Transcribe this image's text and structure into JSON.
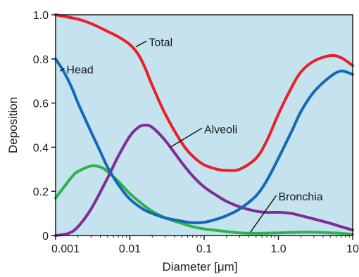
{
  "chart_data": {
    "type": "line",
    "xlabel": "Diameter [μm]",
    "ylabel": "Deposition",
    "xscale": "log",
    "xlim": [
      0.001,
      10
    ],
    "ylim": [
      0,
      1
    ],
    "xticks": [
      {
        "value": 0.001,
        "label": "0.001"
      },
      {
        "value": 0.01,
        "label": "0.01"
      },
      {
        "value": 0.1,
        "label": "0.1"
      },
      {
        "value": 1,
        "label": "1.0"
      },
      {
        "value": 10,
        "label": "10"
      }
    ],
    "yticks": [
      {
        "value": 0,
        "label": "0"
      },
      {
        "value": 0.2,
        "label": "0.2"
      },
      {
        "value": 0.4,
        "label": "0.4"
      },
      {
        "value": 0.6,
        "label": "0.6"
      },
      {
        "value": 0.8,
        "label": "0.8"
      },
      {
        "value": 1.0,
        "label": "1.0"
      }
    ],
    "grid": false,
    "background_color": "#c5e2ef",
    "series": [
      {
        "name": "Total",
        "color": "#e8202a",
        "label_at": {
          "x": 0.018,
          "y": 0.875
        },
        "label_point": {
          "x": 0.012,
          "y": 0.855
        },
        "points": [
          [
            0.001,
            1.0
          ],
          [
            0.002,
            0.98
          ],
          [
            0.003,
            0.96
          ],
          [
            0.005,
            0.925
          ],
          [
            0.007,
            0.9
          ],
          [
            0.01,
            0.865
          ],
          [
            0.013,
            0.82
          ],
          [
            0.016,
            0.76
          ],
          [
            0.02,
            0.68
          ],
          [
            0.03,
            0.55
          ],
          [
            0.05,
            0.42
          ],
          [
            0.07,
            0.36
          ],
          [
            0.1,
            0.32
          ],
          [
            0.15,
            0.3
          ],
          [
            0.2,
            0.295
          ],
          [
            0.3,
            0.3
          ],
          [
            0.5,
            0.35
          ],
          [
            0.7,
            0.43
          ],
          [
            1.0,
            0.55
          ],
          [
            1.5,
            0.67
          ],
          [
            2,
            0.74
          ],
          [
            3,
            0.79
          ],
          [
            5,
            0.815
          ],
          [
            7,
            0.805
          ],
          [
            10,
            0.77
          ]
        ]
      },
      {
        "name": "Head",
        "color": "#1568b8",
        "label_at": {
          "x": 0.0014,
          "y": 0.75
        },
        "label_point": {
          "x": 0.00115,
          "y": 0.745
        },
        "points": [
          [
            0.001,
            0.8
          ],
          [
            0.0013,
            0.74
          ],
          [
            0.0017,
            0.66
          ],
          [
            0.002,
            0.6
          ],
          [
            0.003,
            0.47
          ],
          [
            0.004,
            0.38
          ],
          [
            0.005,
            0.31
          ],
          [
            0.007,
            0.23
          ],
          [
            0.01,
            0.165
          ],
          [
            0.015,
            0.12
          ],
          [
            0.02,
            0.1
          ],
          [
            0.03,
            0.08
          ],
          [
            0.05,
            0.065
          ],
          [
            0.07,
            0.058
          ],
          [
            0.1,
            0.06
          ],
          [
            0.15,
            0.075
          ],
          [
            0.2,
            0.09
          ],
          [
            0.3,
            0.12
          ],
          [
            0.5,
            0.18
          ],
          [
            0.7,
            0.25
          ],
          [
            1.0,
            0.35
          ],
          [
            1.5,
            0.47
          ],
          [
            2,
            0.56
          ],
          [
            3,
            0.65
          ],
          [
            5,
            0.72
          ],
          [
            7,
            0.745
          ],
          [
            10,
            0.73
          ]
        ]
      },
      {
        "name": "Alveoli",
        "color": "#7f2e96",
        "label_at": {
          "x": 0.1,
          "y": 0.48
        },
        "label_point": {
          "x": 0.035,
          "y": 0.4
        },
        "points": [
          [
            0.001,
            0.0
          ],
          [
            0.0015,
            0.01
          ],
          [
            0.002,
            0.04
          ],
          [
            0.003,
            0.12
          ],
          [
            0.005,
            0.26
          ],
          [
            0.007,
            0.36
          ],
          [
            0.01,
            0.45
          ],
          [
            0.013,
            0.49
          ],
          [
            0.016,
            0.5
          ],
          [
            0.02,
            0.49
          ],
          [
            0.03,
            0.43
          ],
          [
            0.05,
            0.33
          ],
          [
            0.07,
            0.27
          ],
          [
            0.1,
            0.22
          ],
          [
            0.15,
            0.18
          ],
          [
            0.2,
            0.155
          ],
          [
            0.3,
            0.13
          ],
          [
            0.5,
            0.11
          ],
          [
            0.7,
            0.105
          ],
          [
            1.0,
            0.105
          ],
          [
            1.5,
            0.1
          ],
          [
            2,
            0.09
          ],
          [
            3,
            0.075
          ],
          [
            5,
            0.055
          ],
          [
            7,
            0.04
          ],
          [
            10,
            0.025
          ]
        ]
      },
      {
        "name": "Bronchia",
        "color": "#2db34a",
        "label_at": {
          "x": 1.0,
          "y": 0.175
        },
        "label_point": {
          "x": 0.42,
          "y": 0.015
        },
        "points": [
          [
            0.001,
            0.17
          ],
          [
            0.0013,
            0.22
          ],
          [
            0.0017,
            0.27
          ],
          [
            0.002,
            0.29
          ],
          [
            0.003,
            0.315
          ],
          [
            0.004,
            0.31
          ],
          [
            0.005,
            0.29
          ],
          [
            0.007,
            0.245
          ],
          [
            0.01,
            0.19
          ],
          [
            0.015,
            0.14
          ],
          [
            0.02,
            0.11
          ],
          [
            0.03,
            0.08
          ],
          [
            0.05,
            0.055
          ],
          [
            0.07,
            0.04
          ],
          [
            0.1,
            0.03
          ],
          [
            0.2,
            0.018
          ],
          [
            0.3,
            0.012
          ],
          [
            0.5,
            0.01
          ],
          [
            1.0,
            0.012
          ],
          [
            2,
            0.015
          ],
          [
            3,
            0.015
          ],
          [
            5,
            0.012
          ],
          [
            7,
            0.01
          ],
          [
            10,
            0.005
          ]
        ]
      }
    ]
  }
}
